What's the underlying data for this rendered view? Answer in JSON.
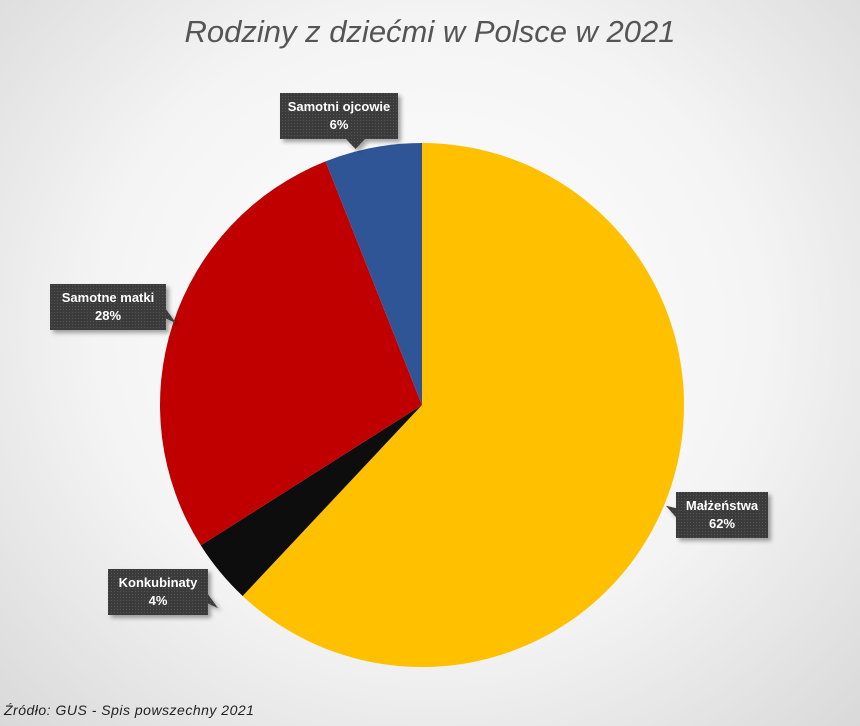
{
  "chart_data": {
    "type": "pie",
    "title": "Rodziny z dziećmi w Polsce w 2021",
    "slices": [
      {
        "name": "Małżeństwa",
        "value": 62,
        "label": "62%",
        "color": "#FFC000"
      },
      {
        "name": "Konkubinaty",
        "value": 4,
        "label": "4%",
        "color": "#0D0D0D"
      },
      {
        "name": "Samotne matki",
        "value": 28,
        "label": "28%",
        "color": "#C00000"
      },
      {
        "name": "Samotni ojcowie",
        "value": 6,
        "label": "6%",
        "color": "#2F5597"
      }
    ],
    "start_angle": "12 o'clock",
    "direction": "clockwise",
    "legend": "none",
    "data_labels": "callouts"
  },
  "source": "Źródło: GUS - Spis powszechny 2021"
}
